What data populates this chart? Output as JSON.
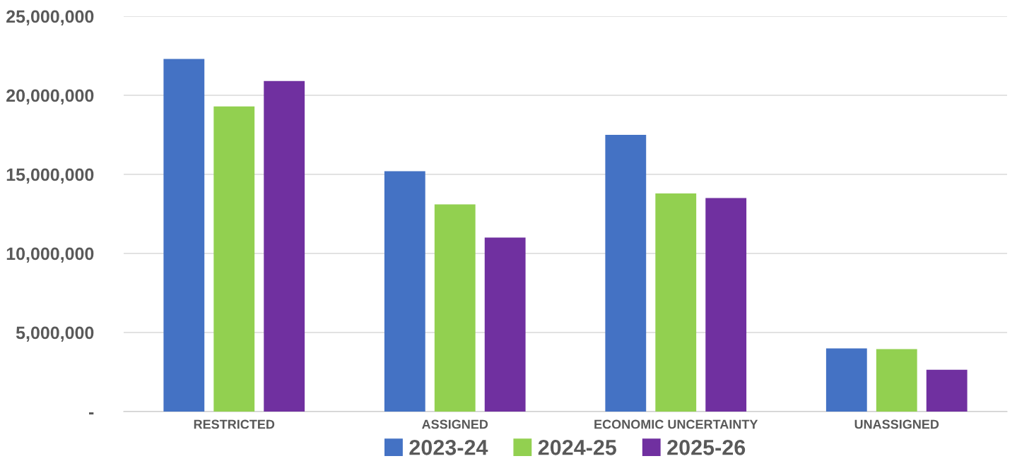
{
  "chart_data": {
    "type": "bar",
    "categories": [
      "RESTRICTED",
      "ASSIGNED",
      "ECONOMIC UNCERTAINTY",
      "UNASSIGNED"
    ],
    "series": [
      {
        "name": "2023-24",
        "color": "#4472c4",
        "values": [
          22300000,
          15200000,
          17500000,
          4000000
        ]
      },
      {
        "name": "2024-25",
        "color": "#92d050",
        "values": [
          19300000,
          13100000,
          13800000,
          3950000
        ]
      },
      {
        "name": "2025-26",
        "color": "#7030a0",
        "values": [
          20900000,
          11000000,
          13500000,
          2650000
        ]
      }
    ],
    "ylim": [
      0,
      25000000
    ],
    "yticks": [
      {
        "value": 0,
        "label": "-"
      },
      {
        "value": 5000000,
        "label": "5,000,000"
      },
      {
        "value": 10000000,
        "label": "10,000,000"
      },
      {
        "value": 15000000,
        "label": "15,000,000"
      },
      {
        "value": 20000000,
        "label": "20,000,000"
      },
      {
        "value": 25000000,
        "label": "25,000,000"
      }
    ],
    "grid": "y",
    "legend": "bottom"
  }
}
